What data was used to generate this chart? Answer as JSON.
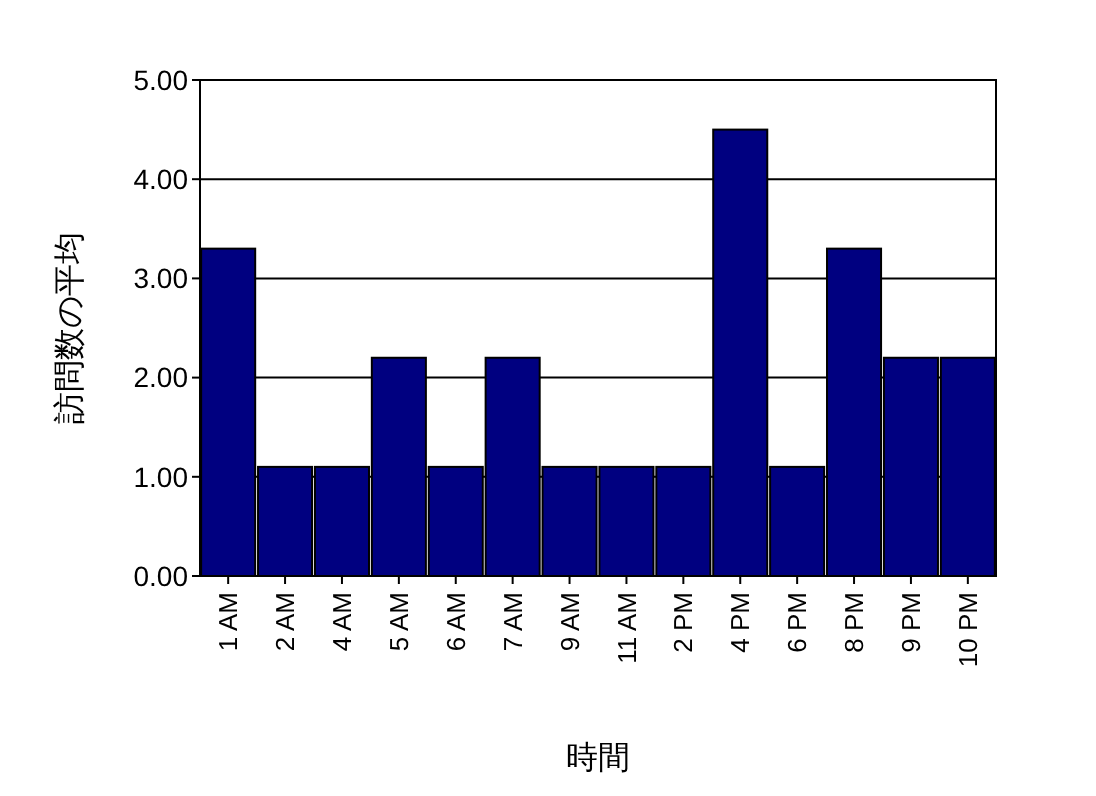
{
  "chart_data": {
    "type": "bar",
    "xlabel": "時間",
    "ylabel": "訪問数の平均",
    "categories": [
      "1 AM",
      "2 AM",
      "4 AM",
      "5 AM",
      "6 AM",
      "7 AM",
      "9 AM",
      "11 AM",
      "2 PM",
      "4 PM",
      "6 PM",
      "8 PM",
      "9 PM",
      "10 PM"
    ],
    "values": [
      3.3,
      1.1,
      1.1,
      2.2,
      1.1,
      2.2,
      1.1,
      1.1,
      1.1,
      4.5,
      1.1,
      3.3,
      2.2,
      2.2
    ],
    "color": "#000080",
    "ylim": [
      0,
      5
    ],
    "yticks": [
      {
        "value": 0,
        "label": "0.00"
      },
      {
        "value": 1,
        "label": "1.00"
      },
      {
        "value": 2,
        "label": "2.00"
      },
      {
        "value": 3,
        "label": "3.00"
      },
      {
        "value": 4,
        "label": "4.00"
      },
      {
        "value": 5,
        "label": "5.00"
      }
    ],
    "grid": "y"
  }
}
